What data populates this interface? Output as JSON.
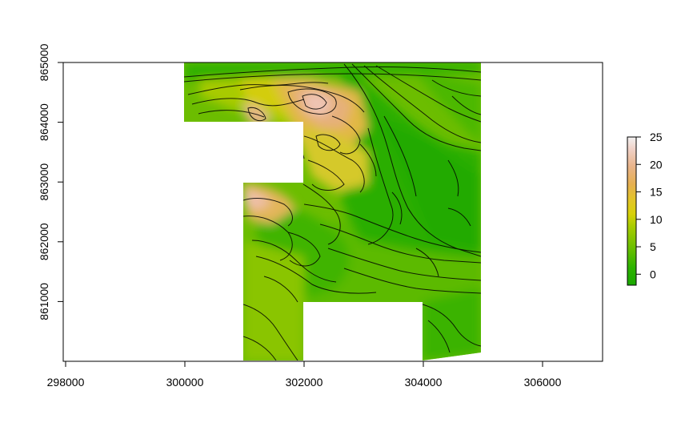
{
  "chart_data": {
    "type": "heatmap",
    "title": "",
    "xlabel": "",
    "ylabel": "",
    "xlim": [
      298000,
      307000
    ],
    "ylim": [
      860000,
      865000
    ],
    "x_ticks": [
      "298000",
      "300000",
      "302000",
      "304000",
      "306000"
    ],
    "y_ticks": [
      "861000",
      "862000",
      "863000",
      "864000",
      "865000"
    ],
    "colorbar": {
      "range": [
        -2,
        25
      ],
      "ticks": [
        "0",
        "5",
        "10",
        "15",
        "20",
        "25"
      ],
      "colors": [
        "#1aa800",
        "#2db300",
        "#5fbd00",
        "#8dc800",
        "#cbd40a",
        "#e3c61e",
        "#e7b250",
        "#e9b482",
        "#f0cfc0",
        "#f2f2f2"
      ]
    },
    "colors": {
      "low": "#1aa800",
      "mid": "#7dc400",
      "high": "#e6b25a",
      "peak": "#f0c8c0",
      "contour": "#000000"
    }
  }
}
